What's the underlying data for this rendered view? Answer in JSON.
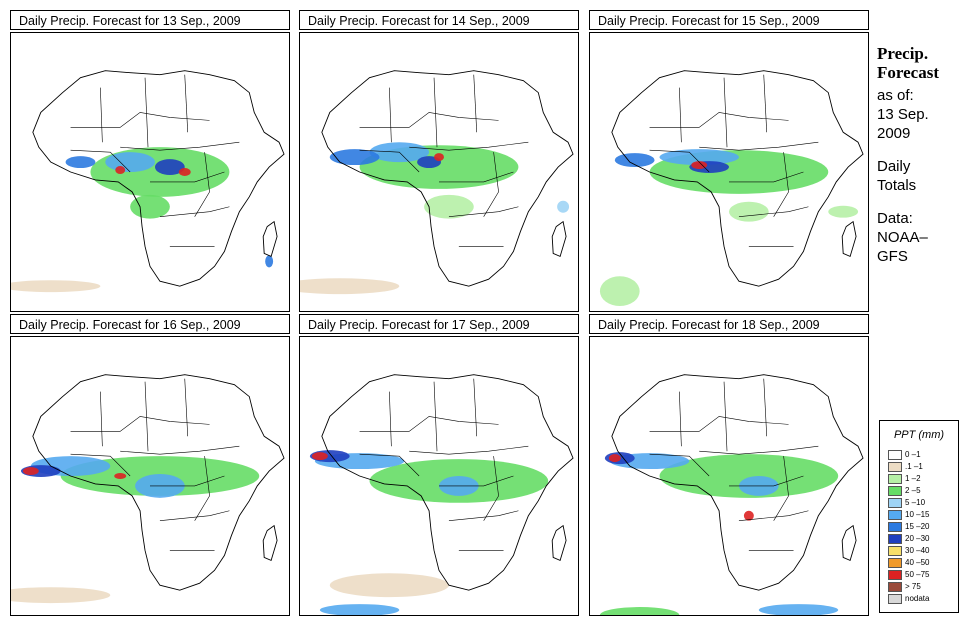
{
  "panels": [
    {
      "title": "Daily Precip. Forecast for  13 Sep., 2009"
    },
    {
      "title": "Daily Precip. Forecast for  14 Sep., 2009"
    },
    {
      "title": "Daily Precip. Forecast for  15 Sep., 2009"
    },
    {
      "title": "Daily Precip. Forecast for  16 Sep., 2009"
    },
    {
      "title": "Daily Precip. Forecast for  17 Sep., 2009"
    },
    {
      "title": "Daily Precip. Forecast for  18 Sep., 2009"
    }
  ],
  "side": {
    "heading_line1": "Precip.",
    "heading_line2": "Forecast",
    "asof_line1": "as of:",
    "asof_line2": "13 Sep.",
    "asof_line3": "2009",
    "totals_line1": "Daily",
    "totals_line2": "Totals",
    "data_line1": "Data:",
    "data_line2": "NOAA–",
    "data_line3": "GFS"
  },
  "legend": {
    "title": "PPT (mm)",
    "items": [
      {
        "label": "0 –1",
        "color": "#ffffff"
      },
      {
        "label": ".1 –1",
        "color": "#ecdcc4"
      },
      {
        "label": "1 –2",
        "color": "#b6f0a6"
      },
      {
        "label": "2 –5",
        "color": "#66dd66"
      },
      {
        "label": "5 –10",
        "color": "#9fd4f5"
      },
      {
        "label": "10 –15",
        "color": "#55aaf0"
      },
      {
        "label": "15 –20",
        "color": "#2c7ae0"
      },
      {
        "label": "20 –30",
        "color": "#1f3fbf"
      },
      {
        "label": "30 –40",
        "color": "#f7e06a"
      },
      {
        "label": "40 –50",
        "color": "#f09a2a"
      },
      {
        "label": "50 –75",
        "color": "#dd2222"
      },
      {
        "label": "> 75",
        "color": "#9a4a3a"
      },
      {
        "label": "nodata",
        "color": "#d8d8d8"
      }
    ]
  }
}
